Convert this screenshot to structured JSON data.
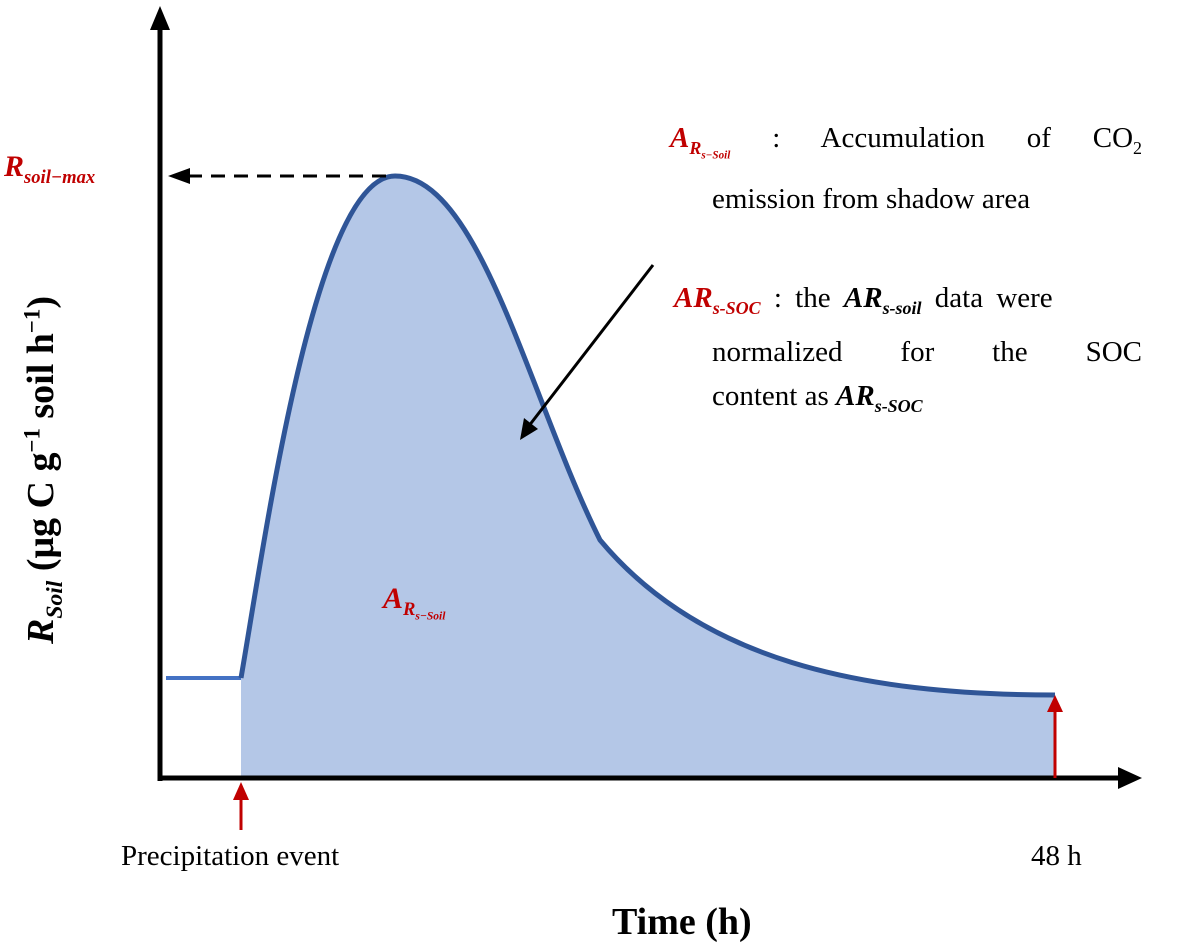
{
  "figure": {
    "x_axis_label": "Time (h)",
    "y_axis_label": {
      "symbol": "R",
      "symbol_sub": "Soil",
      "units_open": "(μg C g",
      "units_sup1": "−1",
      "units_mid": " soil h",
      "units_sup2": "−1",
      "units_close": ")"
    },
    "rmax_label": {
      "symbol": "R",
      "sub": "soil−max"
    },
    "start_label": "Precipitation event",
    "end_label": "48 h",
    "area_label": {
      "symbol": "A",
      "sub1": "R",
      "sub2": "s−Soil"
    },
    "note1": {
      "symbol": "A",
      "sub1": "R",
      "sub2": "s−Soil",
      "text_a": " : Accumulation of CO",
      "text_sub": "2",
      "line2": "emission from shadow area"
    },
    "note2": {
      "symbol": "AR",
      "sub": "s-SOC",
      "text_a": " : the ",
      "mid_symbol": "AR",
      "mid_sub": "s-soil",
      "text_b": " data were",
      "line2": "normalized for the SOC",
      "line3_a": "content as ",
      "end_symbol": "AR",
      "end_sub": "s-SOC"
    }
  },
  "colors": {
    "area_fill": "#b4c7e7",
    "curve": "#2f5597",
    "baseline": "#4472c4",
    "accent_red": "#c00000",
    "axis": "#000000"
  }
}
